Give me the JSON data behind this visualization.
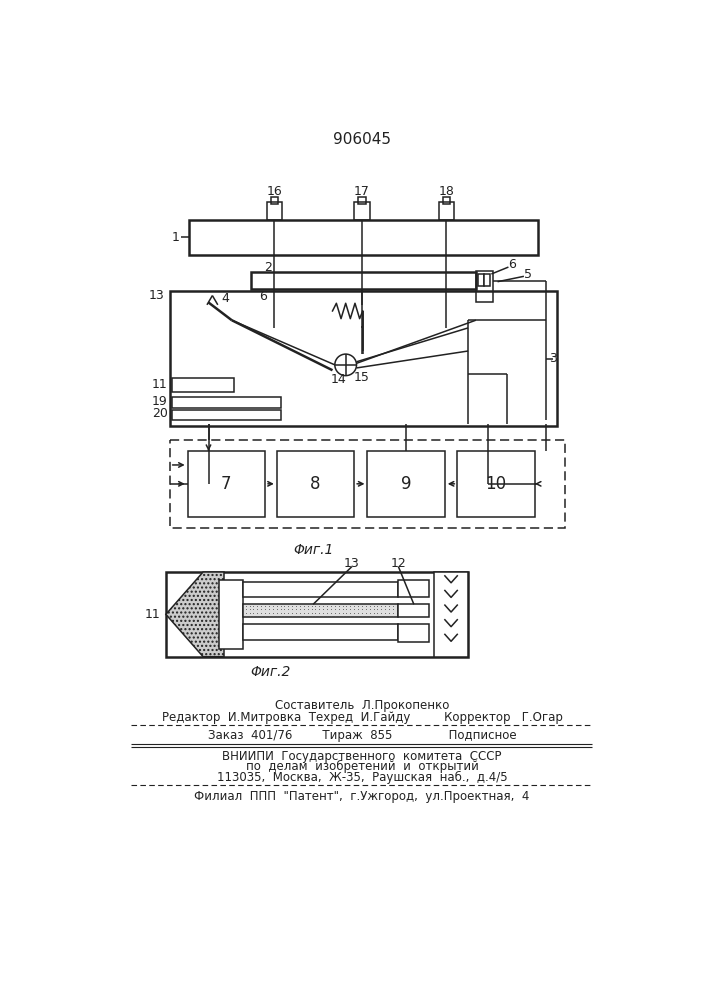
{
  "title": "906045",
  "fig1_label": "Φиг.1",
  "fig2_label": "Φиг.2",
  "footer_lines": [
    "Составитель  Л.Прокопенко",
    "Редактор  И.Митровка  Техред  И.Гайду         Корректор   Г.Огар",
    "Заказ  401/76        Тираж  855               Подписное",
    "ВНИИПИ  Государственного  комитета  СССР",
    "по  делам  изобретений  и  открытий",
    "113035,  Москва,  Ж-35,  Раушская  наб.,  д.4/5",
    "Филиал  ППП  \"Патент\",  г.Ужгород,  ул.Проектная,  4"
  ],
  "bg_color": "#ffffff",
  "line_color": "#222222",
  "text_color": "#222222"
}
